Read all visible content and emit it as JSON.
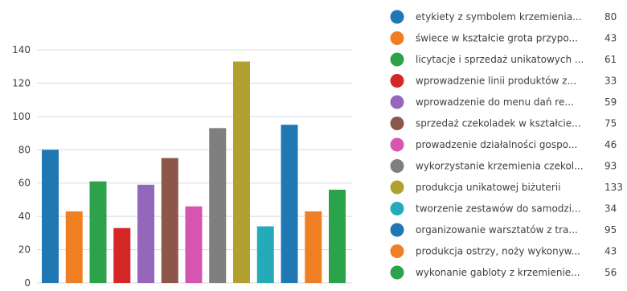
{
  "chart_data": {
    "type": "bar",
    "title": "",
    "xlabel": "",
    "ylabel": "",
    "ylim": [
      0,
      140
    ],
    "yticks": [
      0,
      20,
      40,
      60,
      80,
      100,
      120,
      140
    ],
    "grid": true,
    "legend_position": "right",
    "categories": [
      "etykiety z symbolem krzemienia...",
      "świece w kształcie grota przypo...",
      "licytacje i sprzedaż unikatowych ...",
      "wprowadzenie linii produktów z...",
      "wprowadzenie do menu dań re...",
      "sprzedaż czekoladek w kształcie...",
      "prowadzenie działalności gospo...",
      "wykorzystanie krzemienia czekol...",
      "produkcja unikatowej biżuterii",
      "tworzenie zestawów do samodzi...",
      "organizowanie warsztatów z tra...",
      "produkcja ostrzy, noży wykonyw...",
      "wykonanie gabloty z krzemienie..."
    ],
    "values": [
      80,
      43,
      61,
      33,
      59,
      75,
      46,
      93,
      133,
      34,
      95,
      43,
      56
    ],
    "colors": [
      "#1f77b4",
      "#f07f24",
      "#2ca24a",
      "#d62728",
      "#9467bd",
      "#8c564b",
      "#d655b1",
      "#7f7f7f",
      "#b1a12f",
      "#24aab8",
      "#1f77b4",
      "#f07f24",
      "#2ca24a"
    ]
  }
}
